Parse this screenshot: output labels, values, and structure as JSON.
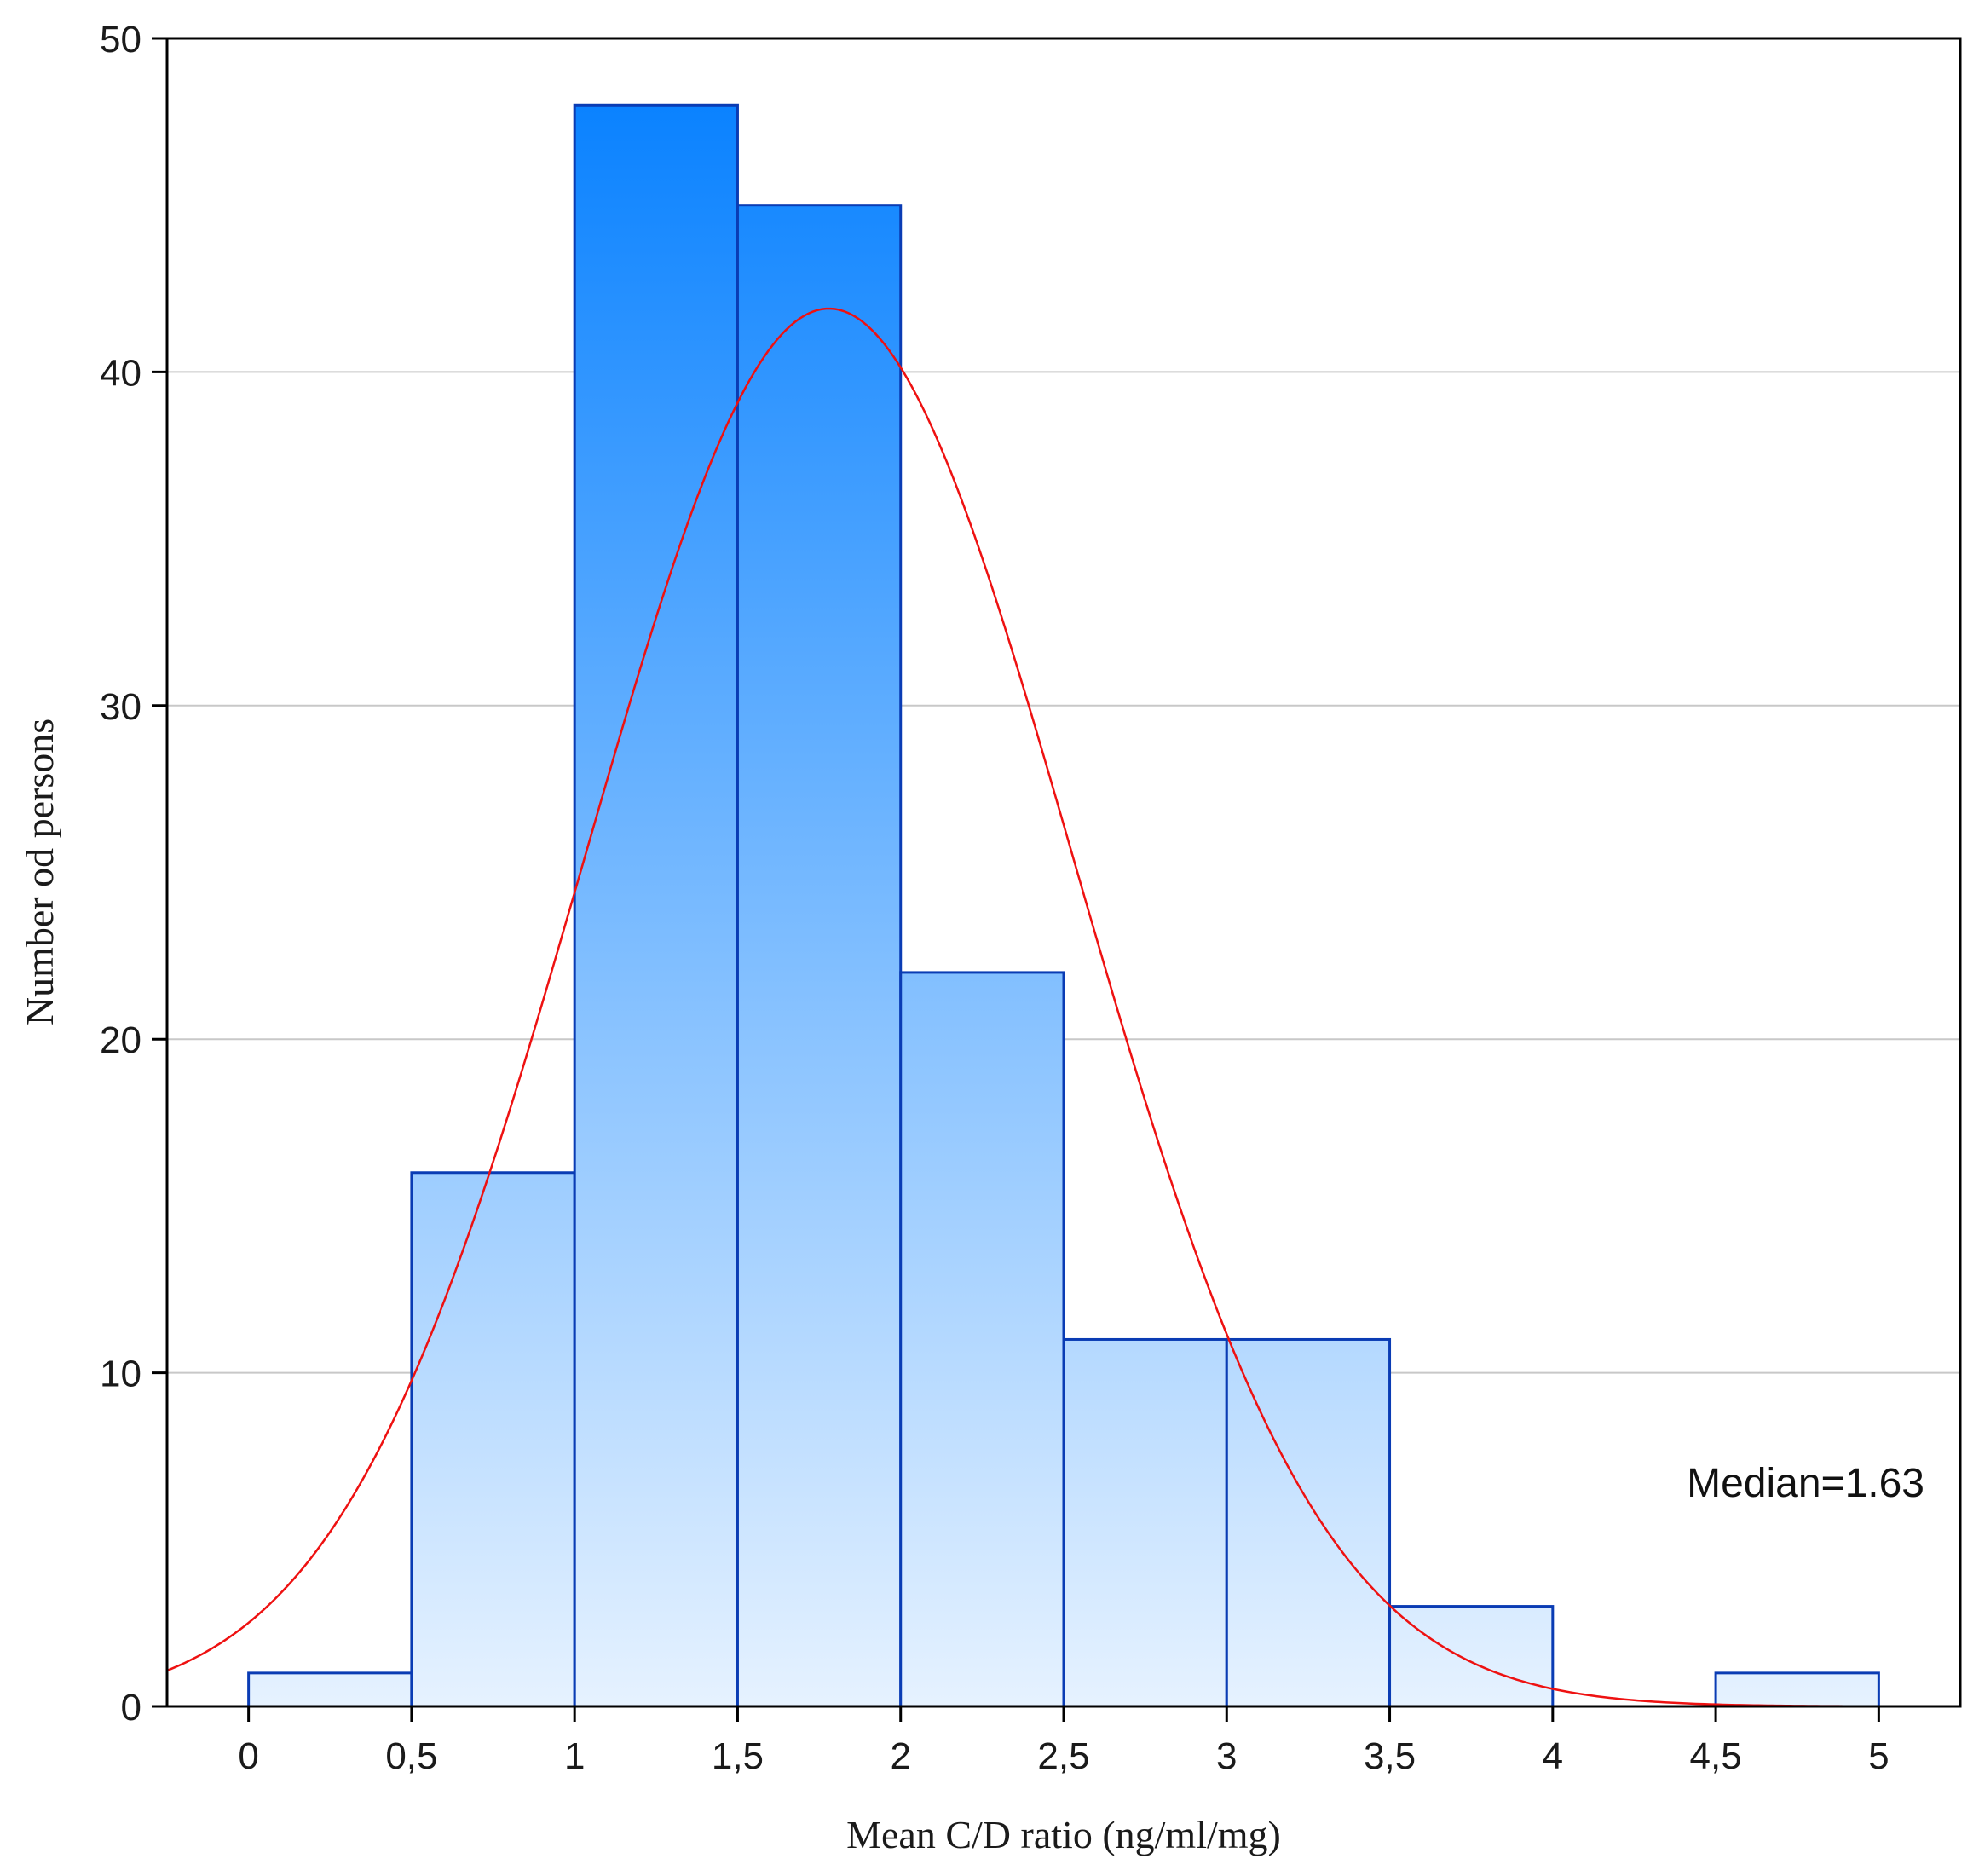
{
  "chart_data": {
    "type": "bar",
    "title": "",
    "xlabel": "Mean C/D ratio (ng/ml/mg)",
    "ylabel": "Number od persons",
    "annotation": "Median=1.63",
    "xlim": [
      -0.25,
      5.25
    ],
    "ylim": [
      0,
      50
    ],
    "grid": true,
    "bin_edges": [
      0,
      0.5,
      1,
      1.5,
      2,
      2.5,
      3,
      3.5,
      4,
      4.5,
      5
    ],
    "values": [
      1,
      16,
      48,
      45,
      22,
      11,
      11,
      3,
      0,
      1
    ],
    "x_ticks": [
      {
        "value": 0,
        "label": "0"
      },
      {
        "value": 0.5,
        "label": "0,5"
      },
      {
        "value": 1,
        "label": "1"
      },
      {
        "value": 1.5,
        "label": "1,5"
      },
      {
        "value": 2,
        "label": "2"
      },
      {
        "value": 2.5,
        "label": "2,5"
      },
      {
        "value": 3,
        "label": "3"
      },
      {
        "value": 3.5,
        "label": "3,5"
      },
      {
        "value": 4,
        "label": "4"
      },
      {
        "value": 4.5,
        "label": "4,5"
      },
      {
        "value": 5,
        "label": "5"
      }
    ],
    "y_ticks": [
      {
        "value": 0,
        "label": "0"
      },
      {
        "value": 10,
        "label": "10"
      },
      {
        "value": 20,
        "label": "20"
      },
      {
        "value": 30,
        "label": "30"
      },
      {
        "value": 40,
        "label": "40"
      },
      {
        "value": 50,
        "label": "50"
      }
    ],
    "normal_fit": {
      "mean": 1.78,
      "sd": 0.75,
      "peak": 41.9
    },
    "colors": {
      "bar_top": "#0a82ff",
      "bar_bottom": "#e6f2ff",
      "bar_edge": "#0a3cb4",
      "curve": "#ee1111",
      "grid": "#c8c8c8"
    }
  }
}
